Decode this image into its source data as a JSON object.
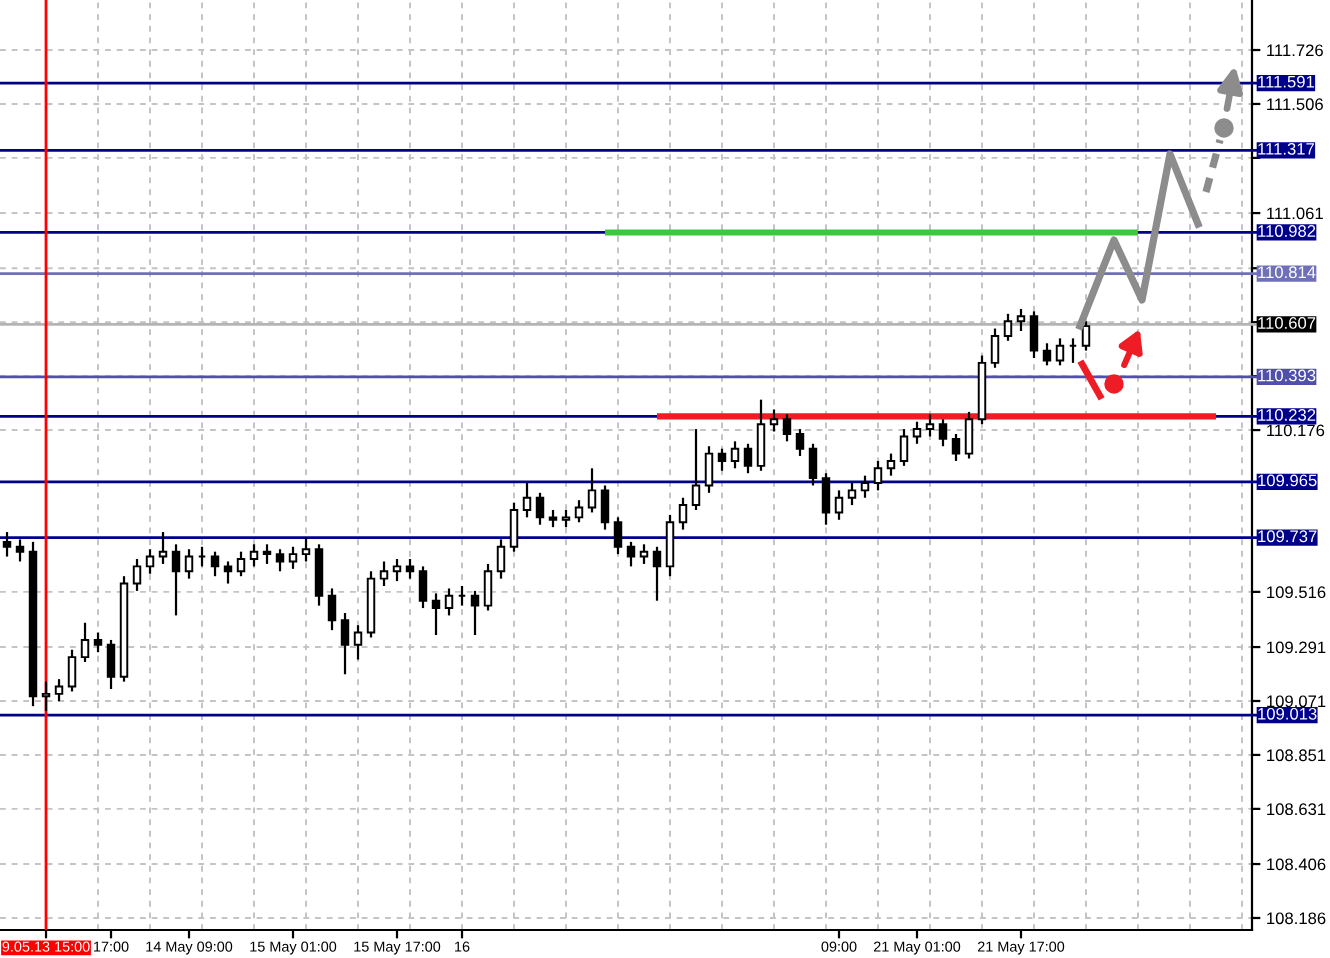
{
  "chart_data": {
    "type": "candlestick",
    "categories": [
      null,
      null,
      null,
      "9.05.13 15:00",
      null,
      null,
      null,
      null,
      "17:00",
      null,
      null,
      null,
      null,
      null,
      "14 May 09:00",
      null,
      null,
      null,
      null,
      null,
      null,
      null,
      "15 May 01:00",
      null,
      null,
      null,
      null,
      null,
      null,
      null,
      "15 May 17:00",
      null,
      null,
      null,
      null,
      "16",
      null,
      null,
      null,
      null,
      null,
      null,
      null,
      null,
      null,
      null,
      null,
      null,
      null,
      null,
      null,
      null,
      null,
      null,
      null,
      null,
      null,
      null,
      null,
      null,
      null,
      null,
      null,
      null,
      "09:00",
      null,
      null,
      null,
      null,
      null,
      "21 May 01:00",
      null,
      null,
      null,
      null,
      null,
      null,
      null,
      "21 May 17:00",
      null,
      null,
      null,
      null,
      null,
      null,
      null,
      null,
      null,
      null,
      null,
      null,
      null,
      null,
      null,
      null,
      null
    ],
    "series": [
      {
        "color": "#000000",
        "ohlc": [
          [
            109.72,
            109.76,
            109.66,
            109.7
          ],
          [
            109.7,
            109.73,
            109.64,
            109.68
          ],
          [
            109.68,
            109.72,
            109.05,
            109.09
          ],
          [
            109.09,
            109.15,
            109.03,
            109.1
          ],
          [
            109.1,
            109.16,
            109.07,
            109.13
          ],
          [
            109.13,
            109.28,
            109.11,
            109.25
          ],
          [
            109.25,
            109.39,
            109.23,
            109.32
          ],
          [
            109.32,
            109.35,
            109.27,
            109.3
          ],
          [
            109.3,
            109.32,
            109.12,
            109.17
          ],
          [
            109.17,
            109.58,
            109.15,
            109.55
          ],
          [
            109.55,
            109.65,
            109.52,
            109.62
          ],
          [
            109.62,
            109.69,
            109.59,
            109.66
          ],
          [
            109.66,
            109.76,
            109.63,
            109.68
          ],
          [
            109.68,
            109.71,
            109.42,
            109.6
          ],
          [
            109.6,
            109.69,
            109.57,
            109.66
          ],
          [
            109.66,
            109.7,
            109.62,
            109.66
          ],
          [
            109.66,
            109.68,
            109.58,
            109.62
          ],
          [
            109.62,
            109.64,
            109.55,
            109.6
          ],
          [
            109.6,
            109.68,
            109.58,
            109.65
          ],
          [
            109.65,
            109.71,
            109.62,
            109.68
          ],
          [
            109.68,
            109.71,
            109.63,
            109.67
          ],
          [
            109.67,
            109.69,
            109.6,
            109.64
          ],
          [
            109.64,
            109.7,
            109.61,
            109.67
          ],
          [
            109.67,
            109.74,
            109.64,
            109.69
          ],
          [
            109.69,
            109.71,
            109.46,
            109.5
          ],
          [
            109.5,
            109.53,
            109.36,
            109.4
          ],
          [
            109.4,
            109.43,
            109.18,
            109.3
          ],
          [
            109.3,
            109.38,
            109.24,
            109.35
          ],
          [
            109.35,
            109.6,
            109.33,
            109.57
          ],
          [
            109.57,
            109.64,
            109.54,
            109.6
          ],
          [
            109.6,
            109.65,
            109.56,
            109.62
          ],
          [
            109.62,
            109.65,
            109.57,
            109.6
          ],
          [
            109.6,
            109.62,
            109.45,
            109.48
          ],
          [
            109.48,
            109.51,
            109.34,
            109.45
          ],
          [
            109.45,
            109.53,
            109.42,
            109.5
          ],
          [
            109.5,
            109.54,
            109.46,
            109.5
          ],
          [
            109.5,
            109.52,
            109.34,
            109.46
          ],
          [
            109.46,
            109.63,
            109.44,
            109.6
          ],
          [
            109.6,
            109.73,
            109.57,
            109.7
          ],
          [
            109.7,
            109.88,
            109.68,
            109.85
          ],
          [
            109.85,
            109.96,
            109.82,
            109.9
          ],
          [
            109.9,
            109.92,
            109.79,
            109.82
          ],
          [
            109.82,
            109.85,
            109.78,
            109.81
          ],
          [
            109.81,
            109.85,
            109.78,
            109.82
          ],
          [
            109.82,
            109.89,
            109.8,
            109.86
          ],
          [
            109.86,
            110.02,
            109.84,
            109.93
          ],
          [
            109.93,
            109.95,
            109.77,
            109.8
          ],
          [
            109.8,
            109.82,
            109.67,
            109.7
          ],
          [
            109.7,
            109.72,
            109.62,
            109.66
          ],
          [
            109.66,
            109.71,
            109.63,
            109.68
          ],
          [
            109.68,
            109.7,
            109.48,
            109.62
          ],
          [
            109.62,
            109.83,
            109.58,
            109.8
          ],
          [
            109.8,
            109.9,
            109.77,
            109.87
          ],
          [
            109.87,
            110.18,
            109.85,
            109.95
          ],
          [
            109.95,
            110.11,
            109.92,
            110.08
          ],
          [
            110.08,
            110.1,
            110.01,
            110.05
          ],
          [
            110.05,
            110.13,
            110.02,
            110.1
          ],
          [
            110.1,
            110.12,
            110.0,
            110.03
          ],
          [
            110.03,
            110.3,
            110.01,
            110.2
          ],
          [
            110.2,
            110.26,
            110.17,
            110.22
          ],
          [
            110.22,
            110.24,
            110.13,
            110.16
          ],
          [
            110.16,
            110.18,
            110.07,
            110.1
          ],
          [
            110.1,
            110.12,
            109.95,
            109.98
          ],
          [
            109.98,
            110.0,
            109.79,
            109.84
          ],
          [
            109.84,
            109.93,
            109.81,
            109.9
          ],
          [
            109.9,
            109.96,
            109.87,
            109.93
          ],
          [
            109.93,
            109.99,
            109.9,
            109.96
          ],
          [
            109.96,
            110.05,
            109.93,
            110.02
          ],
          [
            110.02,
            110.08,
            109.99,
            110.05
          ],
          [
            110.05,
            110.18,
            110.03,
            110.15
          ],
          [
            110.15,
            110.21,
            110.12,
            110.18
          ],
          [
            110.18,
            110.24,
            110.15,
            110.2
          ],
          [
            110.2,
            110.22,
            110.11,
            110.14
          ],
          [
            110.14,
            110.16,
            110.05,
            110.08
          ],
          [
            110.08,
            110.25,
            110.06,
            110.22
          ],
          [
            110.22,
            110.48,
            110.2,
            110.45
          ],
          [
            110.45,
            110.59,
            110.43,
            110.56
          ],
          [
            110.56,
            110.65,
            110.54,
            110.62
          ],
          [
            110.62,
            110.67,
            110.58,
            110.64
          ],
          [
            110.64,
            110.66,
            110.47,
            110.5
          ],
          [
            110.5,
            110.53,
            110.44,
            110.46
          ],
          [
            110.46,
            110.55,
            110.44,
            110.52
          ],
          [
            110.52,
            110.55,
            110.45,
            110.52
          ],
          [
            110.52,
            110.62,
            110.5,
            110.6
          ],
          null,
          null,
          null,
          null,
          null,
          null,
          null,
          null,
          null,
          null,
          null,
          null
        ]
      },
      {
        "type": "line",
        "color": "#3cc83c",
        "values": [
          null,
          null,
          null,
          null,
          null,
          null,
          null,
          null,
          null,
          null,
          null,
          null,
          null,
          null,
          null,
          null,
          null,
          null,
          null,
          null,
          null,
          null,
          null,
          null,
          null,
          null,
          null,
          null,
          null,
          null,
          null,
          null,
          null,
          null,
          null,
          null,
          null,
          null,
          null,
          null,
          null,
          null,
          null,
          null,
          null,
          null,
          110.982,
          110.982,
          110.982,
          110.982,
          110.982,
          110.982,
          110.982,
          110.982,
          110.982,
          110.982,
          110.982,
          110.982,
          110.982,
          110.982,
          110.982,
          110.982,
          110.982,
          110.982,
          110.982,
          110.982,
          110.982,
          110.982,
          110.982,
          110.982,
          110.982,
          110.982,
          110.982,
          110.982,
          110.982,
          110.982,
          110.982,
          110.982,
          110.982,
          110.982,
          110.982,
          110.982,
          110.982,
          110.982,
          110.982,
          110.982,
          110.982,
          110.982,
          null,
          null,
          null,
          null,
          null,
          null,
          null,
          null
        ]
      },
      {
        "type": "line",
        "color": "#ee1c24",
        "values": [
          null,
          null,
          null,
          null,
          null,
          null,
          null,
          null,
          null,
          null,
          null,
          null,
          null,
          null,
          null,
          null,
          null,
          null,
          null,
          null,
          null,
          null,
          null,
          null,
          null,
          null,
          null,
          null,
          null,
          null,
          null,
          null,
          null,
          null,
          null,
          null,
          null,
          null,
          null,
          null,
          null,
          null,
          null,
          null,
          null,
          null,
          null,
          null,
          null,
          null,
          110.232,
          110.232,
          110.232,
          110.232,
          110.232,
          110.232,
          110.232,
          110.232,
          110.232,
          110.232,
          110.232,
          110.232,
          110.232,
          110.232,
          110.232,
          110.232,
          110.232,
          110.232,
          110.232,
          110.232,
          110.232,
          110.232,
          110.232,
          110.232,
          110.232,
          110.232,
          110.232,
          110.232,
          110.232,
          110.232,
          110.232,
          110.232,
          110.232,
          110.232,
          110.232,
          110.232,
          110.232,
          110.232,
          110.232,
          110.232,
          110.232,
          110.232,
          110.232,
          110.232,
          null,
          null
        ]
      }
    ],
    "ylim": [
      108.137,
      111.93
    ],
    "yticks": [
      108.186,
      108.406,
      108.631,
      108.851,
      109.071,
      109.291,
      109.516,
      110.176,
      {
        "value": 110.396,
        "label": null
      },
      {
        "value": 110.616,
        "label": null
      },
      {
        "value": 110.836,
        "label": null
      },
      111.061,
      {
        "value": 111.286,
        "label": null
      },
      111.506,
      111.726
    ],
    "ref_lines": [
      {
        "axis": "y",
        "value": 111.591,
        "label": "111.591",
        "color": "#00008b"
      },
      {
        "axis": "y",
        "value": 111.317,
        "label": "111.317",
        "color": "#00008b"
      },
      {
        "axis": "y",
        "value": 110.982,
        "label": "110.982",
        "color": "#00008b"
      },
      {
        "axis": "y",
        "value": 110.814,
        "label": "110.814",
        "color": "#7070b8"
      },
      {
        "axis": "y",
        "value": 110.607,
        "label": "110.607",
        "color": "#b4b4b4"
      },
      {
        "axis": "y",
        "value": 110.393,
        "label": "110.393",
        "color": "#5050a8"
      },
      {
        "axis": "y",
        "value": 110.232,
        "label": "110.232",
        "color": "#00008b"
      },
      {
        "axis": "y",
        "value": 109.965,
        "label": "109.965",
        "color": "#00008b"
      },
      {
        "axis": "y",
        "value": 109.737,
        "label": "109.737",
        "color": "#00008b"
      },
      {
        "axis": "y",
        "value": 109.013,
        "label": "109.013",
        "color": "#00008b"
      },
      {
        "axis": "x",
        "value": "9.05.13 15:00",
        "color": "#ff0000"
      }
    ],
    "grid": true
  }
}
